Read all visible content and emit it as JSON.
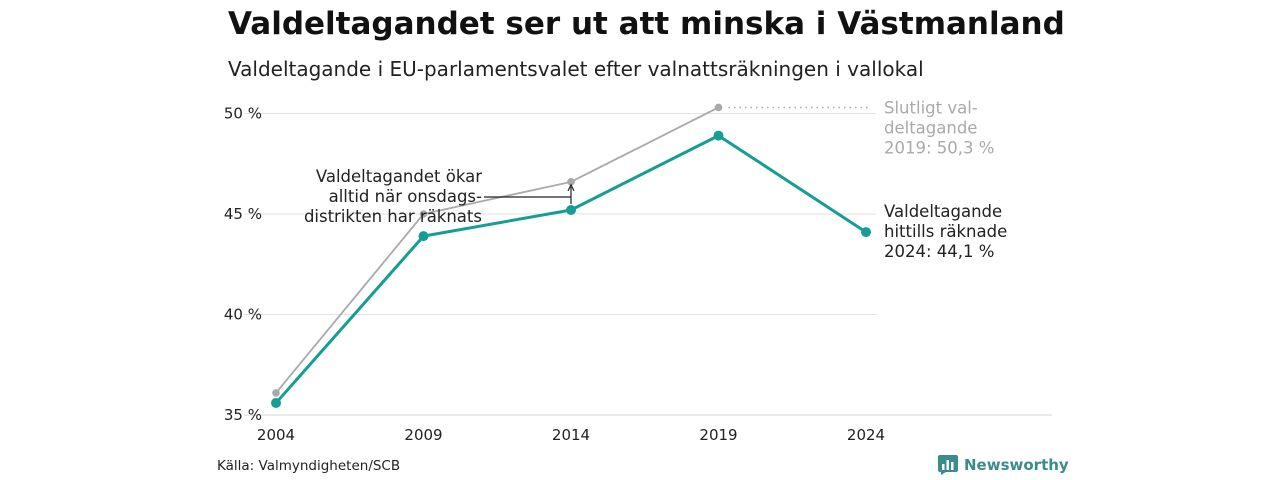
{
  "header": {
    "title": "Valdeltagandet ser ut att minska i Västmanland",
    "subtitle": "Valdeltagande i EU-parlamentsvalet efter valnattsräkningen i vallokal"
  },
  "chart_data": {
    "type": "line",
    "categories": [
      "2004",
      "2009",
      "2014",
      "2019",
      "2024"
    ],
    "series": [
      {
        "key": "final",
        "color": "#aaaaaa",
        "values": [
          36.1,
          45.0,
          46.6,
          50.3,
          null
        ]
      },
      {
        "key": "election_night",
        "color": "#169e94",
        "values": [
          35.6,
          43.9,
          45.2,
          48.9,
          44.1
        ]
      }
    ],
    "yticks": [
      "35 %",
      "40 %",
      "45 %",
      "50 %"
    ],
    "ytick_values": [
      35,
      40,
      45,
      50
    ],
    "ylim": [
      35,
      51.2
    ],
    "grid": true,
    "annotations": {
      "wednesday": [
        "Valdeltagandet ökar",
        "alltid när onsdags-",
        "distrikten har räknats"
      ],
      "final": [
        "Slutligt val-",
        "deltagande",
        "2019: 50,3 %"
      ],
      "current": [
        "Valdeltagande",
        "hittills räknade",
        "2024: 44,1 %"
      ]
    }
  },
  "footer": {
    "source": "Källa: Valmyndigheten/SCB",
    "brand": "Newsworthy",
    "brand_icon": "bar-chart-logo-icon"
  }
}
